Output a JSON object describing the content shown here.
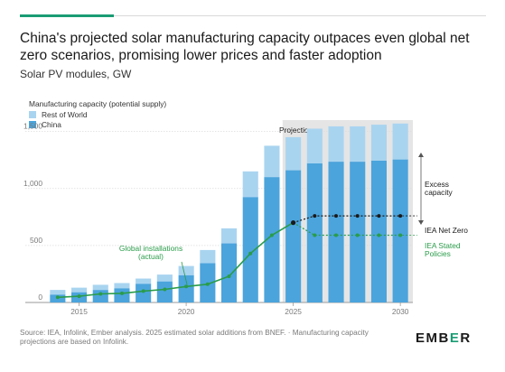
{
  "header": {
    "title": "China's projected solar manufacturing capacity outpaces even global net zero scenarios, promising lower prices and faster adoption",
    "subtitle": "Solar PV modules, GW"
  },
  "legend": {
    "heading": "Manufacturing capacity (potential supply)",
    "items": [
      "Rest of World",
      "China"
    ]
  },
  "annotations": {
    "projections": "Projections",
    "excess_capacity": [
      "Excess",
      "capacity"
    ],
    "global_installations": [
      "Global installations",
      "(actual)"
    ],
    "net_zero": "IEA Net Zero",
    "stated_policies": [
      "IEA Stated",
      "Policies"
    ]
  },
  "footer": {
    "source": "Source: IEA, Infolink, Ember analysis. 2025 estimated solar additions from BNEF. · Manufacturing capacity projections are based on Infolink.",
    "logo_main": "EMB",
    "logo_accent": "E",
    "logo_end": "R"
  },
  "colors": {
    "china": "#4ba4dc",
    "rest_of_world": "#a9d4f0",
    "installations": "#2a9c4a",
    "scenario": "#1a1a1a",
    "projection_shade": "#e5e5e5",
    "grid": "#dcdcdc",
    "accent": "#1a9c74"
  },
  "chart_data": {
    "type": "bar",
    "stacked": true,
    "categories": [
      2014,
      2015,
      2016,
      2017,
      2018,
      2019,
      2020,
      2021,
      2022,
      2023,
      2024,
      2025,
      2026,
      2027,
      2028,
      2029,
      2030
    ],
    "x_ticks": [
      "2015",
      "2020",
      "2025",
      "2030"
    ],
    "x_tick_years": [
      2015,
      2020,
      2025,
      2030
    ],
    "y_ticks": [
      "0",
      "500",
      "1,000",
      "1,500"
    ],
    "y_tick_values": [
      0,
      500,
      1000,
      1500
    ],
    "ylim": [
      0,
      1600
    ],
    "projection_start": 2025,
    "series": [
      {
        "name": "China",
        "values": [
          70,
          90,
          110,
          125,
          165,
          185,
          240,
          345,
          520,
          925,
          1100,
          1160,
          1220,
          1235,
          1235,
          1245,
          1255
        ]
      },
      {
        "name": "Rest of World",
        "values": [
          40,
          40,
          45,
          45,
          45,
          60,
          80,
          115,
          130,
          225,
          275,
          290,
          305,
          310,
          310,
          315,
          315
        ]
      }
    ],
    "lines": [
      {
        "name": "Global installations (actual)",
        "x": [
          2014,
          2015,
          2016,
          2017,
          2018,
          2019,
          2020,
          2021,
          2022,
          2023,
          2024,
          2025
        ],
        "y": [
          45,
          55,
          75,
          80,
          100,
          115,
          140,
          160,
          230,
          430,
          590,
          700
        ]
      },
      {
        "name": "IEA Net Zero",
        "x": [
          2025,
          2026,
          2027,
          2028,
          2029,
          2030
        ],
        "y": [
          700,
          760,
          760,
          760,
          760,
          760
        ]
      },
      {
        "name": "IEA Stated Policies",
        "x": [
          2025,
          2026,
          2027,
          2028,
          2029,
          2030
        ],
        "y": [
          700,
          590,
          590,
          590,
          590,
          590
        ]
      }
    ]
  }
}
